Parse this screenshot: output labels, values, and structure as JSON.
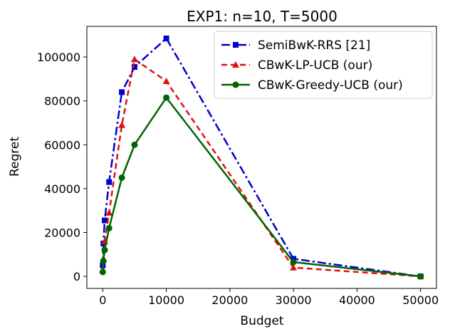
{
  "chart_data": {
    "type": "line",
    "title": "EXP1: n=10, T=5000",
    "xlabel": "Budget",
    "ylabel": "Regret",
    "xlim": [
      -2500,
      52500
    ],
    "ylim": [
      -5500,
      114000
    ],
    "xticks": [
      0,
      10000,
      20000,
      30000,
      40000,
      50000
    ],
    "xtick_labels": [
      "0",
      "10000",
      "20000",
      "30000",
      "40000",
      "50000"
    ],
    "yticks": [
      0,
      20000,
      40000,
      60000,
      80000,
      100000
    ],
    "ytick_labels": [
      "0",
      "20000",
      "40000",
      "60000",
      "80000",
      "100000"
    ],
    "grid": false,
    "legend_position": "top-right",
    "series": [
      {
        "name": "SemiBwK-RRS [21]",
        "color": "#0000cc",
        "linestyle": "dashdot",
        "marker": "square",
        "x": [
          0,
          100,
          300,
          1000,
          3000,
          5000,
          10000,
          30000,
          50000
        ],
        "y": [
          5000,
          15000,
          25500,
          43000,
          84000,
          95500,
          108500,
          8000,
          0
        ]
      },
      {
        "name": "CBwK-LP-UCB (our)",
        "color": "#dd1111",
        "linestyle": "dashed",
        "marker": "triangle",
        "x": [
          0,
          100,
          300,
          1000,
          3000,
          5000,
          10000,
          30000,
          50000
        ],
        "y": [
          3000,
          8000,
          16000,
          29000,
          69000,
          99000,
          89000,
          4000,
          0
        ]
      },
      {
        "name": "CBwK-Greedy-UCB (our)",
        "color": "#006400",
        "linestyle": "solid",
        "marker": "circle",
        "x": [
          0,
          100,
          300,
          1000,
          3000,
          5000,
          10000,
          30000,
          50000
        ],
        "y": [
          2000,
          7000,
          12000,
          22000,
          45000,
          60000,
          81500,
          6500,
          0
        ]
      }
    ]
  }
}
